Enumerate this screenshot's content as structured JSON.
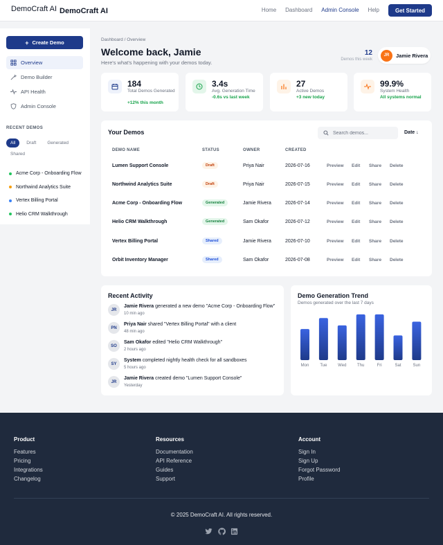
{
  "header": {
    "logo_alt": "DemoCraft AI",
    "brand": "DemoCraft AI",
    "nav": [
      {
        "label": "Home"
      },
      {
        "label": "Dashboard"
      },
      {
        "label": "Admin Console"
      },
      {
        "label": "Help"
      }
    ],
    "cta": "Get Started"
  },
  "sidebar": {
    "create_button": "Create Demo",
    "items": [
      {
        "label": "Overview",
        "icon": "grid-icon"
      },
      {
        "label": "Demo Builder",
        "icon": "wand-icon"
      },
      {
        "label": "API Health",
        "icon": "pulse-icon"
      },
      {
        "label": "Admin Console",
        "icon": "shield-icon"
      }
    ],
    "recent_title": "RECENT DEMOS",
    "filters": [
      "All",
      "Draft",
      "Generated",
      "Shared"
    ],
    "recent": [
      {
        "label": "Acme Corp - Onboarding Flow",
        "color": "#22c55e"
      },
      {
        "label": "Northwind Analytics Suite",
        "color": "#f59e0b"
      },
      {
        "label": "Vertex Billing Portal",
        "color": "#3b82f6"
      },
      {
        "label": "Helio CRM Walkthrough",
        "color": "#22c55e"
      }
    ]
  },
  "main": {
    "breadcrumb": "Dashboard / Overview",
    "title": "Welcome back, Jamie",
    "subtitle": "Here's what's happening with your demos today.",
    "demos_week_value": "12",
    "demos_week_label": "Demos this week",
    "user": {
      "initials": "JR",
      "name": "Jamie Rivera"
    }
  },
  "stats": [
    {
      "value": "184",
      "label": "Total Demos Generated",
      "delta": "+12% this month",
      "icon": "calendar-icon",
      "bg": "#eef2fb",
      "fg": "#1e3a8a"
    },
    {
      "value": "3.4s",
      "label": "Avg. Generation Time",
      "delta": "-0.6s vs last week",
      "icon": "clock-icon",
      "bg": "#e3f6ea",
      "fg": "#16a34a"
    },
    {
      "value": "27",
      "label": "Active Demos",
      "delta": "+3 new today",
      "icon": "bars-icon",
      "bg": "#fef3e7",
      "fg": "#f97316"
    },
    {
      "value": "99.9%",
      "label": "System Health",
      "delta": "All systems normal",
      "icon": "pulse-icon",
      "bg": "#fef3e7",
      "fg": "#f97316"
    }
  ],
  "demos": {
    "title": "Your Demos",
    "search_placeholder": "Search demos...",
    "sort": "Date ↓",
    "columns": [
      "DEMO NAME",
      "STATUS",
      "OWNER",
      "CREATED"
    ],
    "actions": [
      "Preview",
      "Edit",
      "Share",
      "Delete"
    ],
    "rows": [
      {
        "name": "Lumen Support Console",
        "status": "Draft",
        "owner": "Priya Nair",
        "created": "2026-07-16"
      },
      {
        "name": "Northwind Analytics Suite",
        "status": "Draft",
        "owner": "Priya Nair",
        "created": "2026-07-15"
      },
      {
        "name": "Acme Corp - Onboarding Flow",
        "status": "Generated",
        "owner": "Jamie Rivera",
        "created": "2026-07-14"
      },
      {
        "name": "Helio CRM Walkthrough",
        "status": "Generated",
        "owner": "Sam Okafor",
        "created": "2026-07-12"
      },
      {
        "name": "Vertex Billing Portal",
        "status": "Shared",
        "owner": "Jamie Rivera",
        "created": "2026-07-10"
      },
      {
        "name": "Orbit Inventory Manager",
        "status": "Shared",
        "owner": "Sam Okafor",
        "created": "2026-07-08"
      }
    ]
  },
  "activity": {
    "title": "Recent Activity",
    "items": [
      {
        "initials": "JR",
        "actor": "Jamie Rivera",
        "text": "generated a new demo \"Acme Corp - Onboarding Flow\"",
        "time": "10 min ago"
      },
      {
        "initials": "PN",
        "actor": "Priya Nair",
        "text": "shared \"Vertex Billing Portal\" with a client",
        "time": "48 min ago"
      },
      {
        "initials": "SO",
        "actor": "Sam Okafor",
        "text": "edited \"Helio CRM Walkthrough\"",
        "time": "2 hours ago"
      },
      {
        "initials": "SY",
        "actor": "System",
        "text": "completed nightly health check for all sandboxes",
        "time": "5 hours ago"
      },
      {
        "initials": "JR",
        "actor": "Jamie Rivera",
        "text": "created demo \"Lumen Support Console\"",
        "time": "Yesterday"
      }
    ]
  },
  "chart_data": {
    "type": "bar",
    "title": "Demo Generation Trend",
    "subtitle": "Demos generated over the last 7 days",
    "categories": [
      "Mon",
      "Tue",
      "Wed",
      "Thu",
      "Fri",
      "Sat",
      "Sun"
    ],
    "values": [
      34,
      46,
      38,
      50,
      50,
      27,
      42
    ],
    "ylim": [
      0,
      50
    ],
    "grid": false,
    "bar_color": "#2f57d6"
  },
  "footer": {
    "columns": [
      {
        "title": "Product",
        "links": [
          "Features",
          "Pricing",
          "Integrations",
          "Changelog"
        ]
      },
      {
        "title": "Resources",
        "links": [
          "Documentation",
          "API Reference",
          "Guides",
          "Support"
        ]
      },
      {
        "title": "Account",
        "links": [
          "Sign In",
          "Sign Up",
          "Forgot Password",
          "Profile"
        ]
      }
    ],
    "copyright": "© 2025 DemoCraft AI. All rights reserved.",
    "social": [
      "twitter-icon",
      "github-icon",
      "linkedin-icon"
    ]
  }
}
